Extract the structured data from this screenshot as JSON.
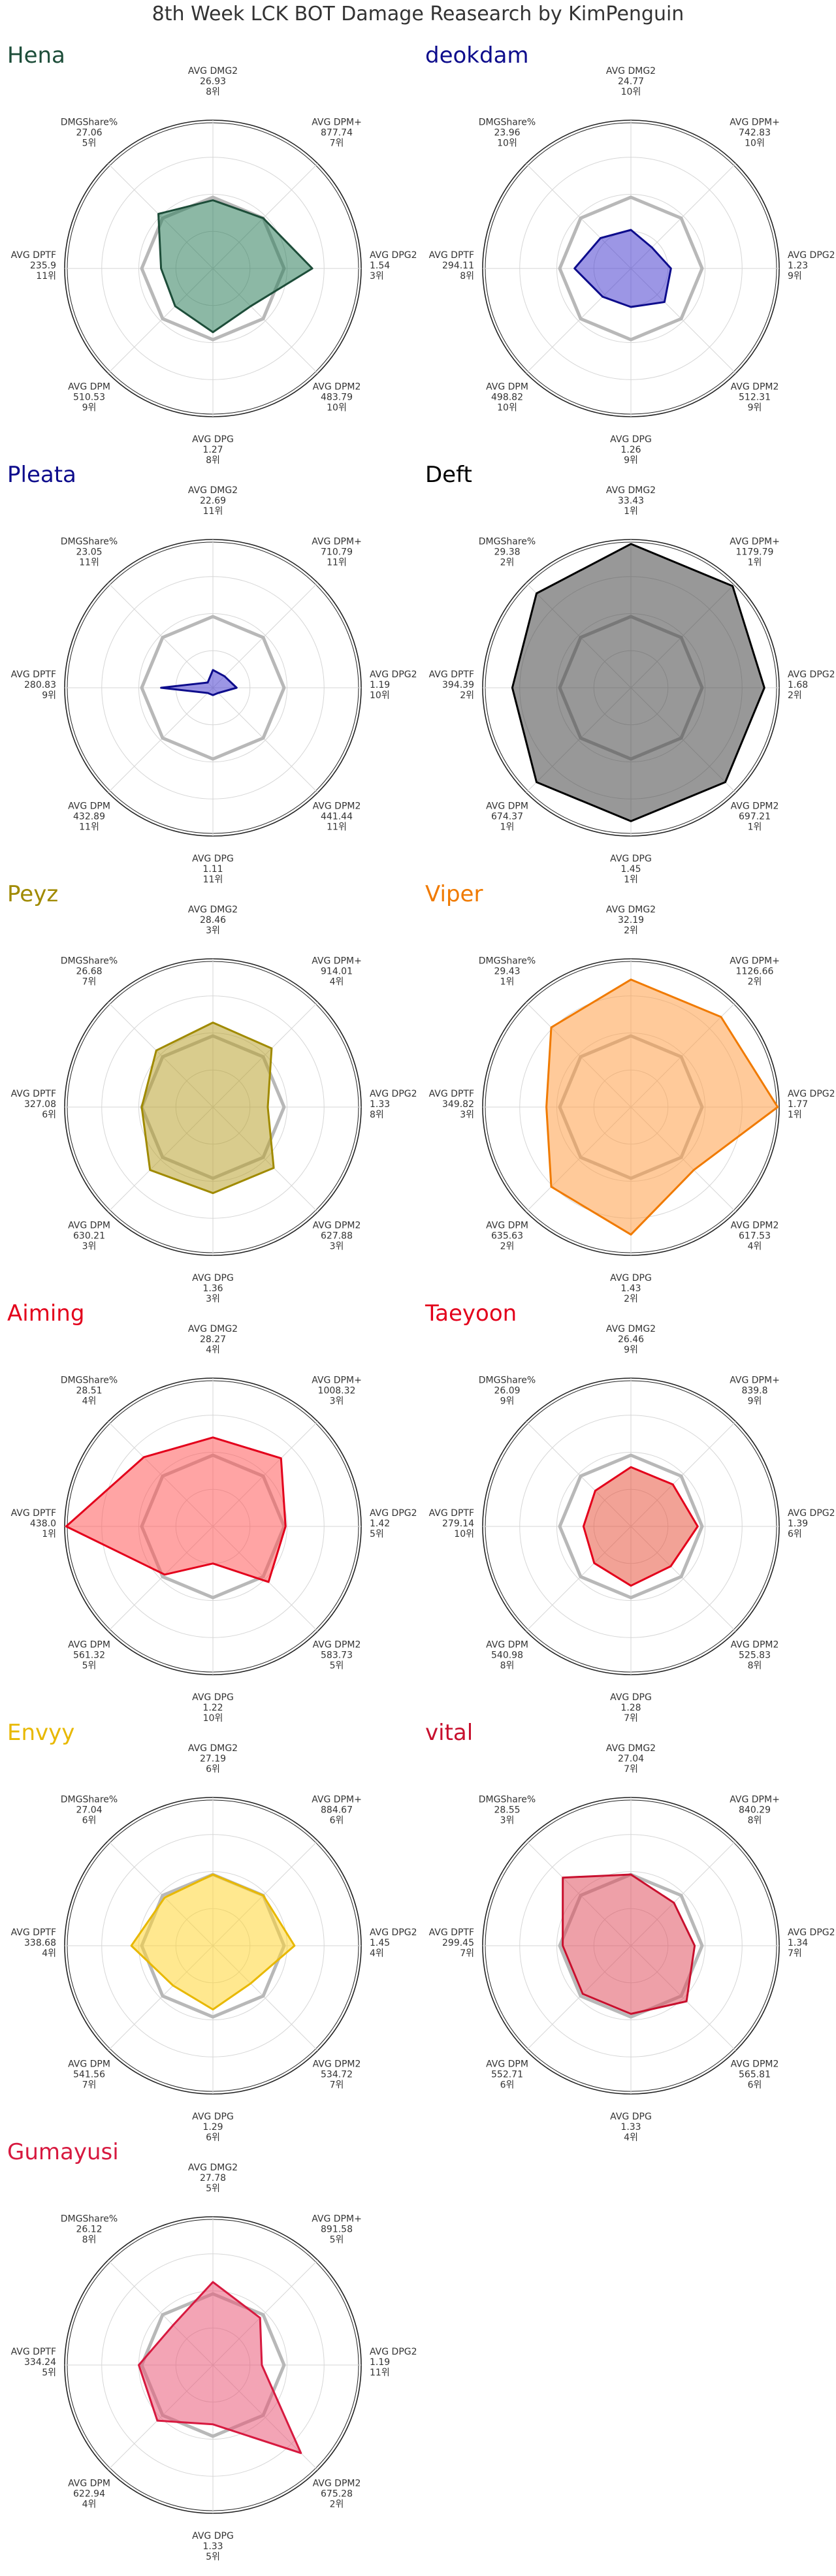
{
  "title": "8th Week LCK BOT Damage Reasearch by KimPenguin",
  "chart_data": [
    {
      "type": "radar",
      "player": "Hena",
      "color": "#1d4d39",
      "fill": "#2e7d5b",
      "axes": [
        {
          "label": "AVG DMG2",
          "value": "26.93",
          "rank": "8위"
        },
        {
          "label": "AVG DPM+",
          "value": "877.74",
          "rank": "7위"
        },
        {
          "label": "AVG DPG2",
          "value": "1.54",
          "rank": "3위"
        },
        {
          "label": "AVG DPM2",
          "value": "483.79",
          "rank": "10위"
        },
        {
          "label": "AVG DPG",
          "value": "1.27",
          "rank": "8위"
        },
        {
          "label": "AVG DPM",
          "value": "510.53",
          "rank": "9위"
        },
        {
          "label": "AVG DPTF",
          "value": "235.9",
          "rank": "11위"
        },
        {
          "label": "DMGShare%",
          "value": "27.06",
          "rank": "5위"
        }
      ],
      "scaled": [
        0.46,
        0.48,
        0.67,
        0.36,
        0.43,
        0.36,
        0.35,
        0.52
      ]
    },
    {
      "type": "radar",
      "player": "deokdam",
      "color": "#0d0c8c",
      "fill": "#4b3fd0",
      "axes": [
        {
          "label": "AVG DMG2",
          "value": "24.77",
          "rank": "10위"
        },
        {
          "label": "AVG DPM+",
          "value": "742.83",
          "rank": "10위"
        },
        {
          "label": "AVG DPG2",
          "value": "1.23",
          "rank": "9위"
        },
        {
          "label": "AVG DPM2",
          "value": "512.31",
          "rank": "9위"
        },
        {
          "label": "AVG DPG",
          "value": "1.26",
          "rank": "9위"
        },
        {
          "label": "AVG DPM",
          "value": "498.82",
          "rank": "10위"
        },
        {
          "label": "AVG DPTF",
          "value": "294.11",
          "rank": "8위"
        },
        {
          "label": "DMGShare%",
          "value": "23.96",
          "rank": "10위"
        }
      ],
      "scaled": [
        0.26,
        0.2,
        0.27,
        0.32,
        0.26,
        0.27,
        0.38,
        0.29
      ]
    },
    {
      "type": "radar",
      "player": "Pleata",
      "color": "#0d0c8c",
      "fill": "#4b3fd0",
      "axes": [
        {
          "label": "AVG DMG2",
          "value": "22.69",
          "rank": "11위"
        },
        {
          "label": "AVG DPM+",
          "value": "710.79",
          "rank": "11위"
        },
        {
          "label": "AVG DPG2",
          "value": "1.19",
          "rank": "10위"
        },
        {
          "label": "AVG DPM2",
          "value": "441.44",
          "rank": "11위"
        },
        {
          "label": "AVG DPG",
          "value": "1.11",
          "rank": "11위"
        },
        {
          "label": "AVG DPM",
          "value": "432.89",
          "rank": "11위"
        },
        {
          "label": "AVG DPTF",
          "value": "280.83",
          "rank": "9위"
        },
        {
          "label": "DMGShare%",
          "value": "23.05",
          "rank": "11위"
        }
      ],
      "scaled": [
        0.12,
        0.11,
        0.16,
        0.05,
        0.05,
        0.05,
        0.35,
        0.05
      ]
    },
    {
      "type": "radar",
      "player": "Deft",
      "color": "#000000",
      "fill": "#444444",
      "axes": [
        {
          "label": "AVG DMG2",
          "value": "33.43",
          "rank": "1위"
        },
        {
          "label": "AVG DPM+",
          "value": "1179.79",
          "rank": "1위"
        },
        {
          "label": "AVG DPG2",
          "value": "1.68",
          "rank": "2위"
        },
        {
          "label": "AVG DPM2",
          "value": "697.21",
          "rank": "1위"
        },
        {
          "label": "AVG DPG",
          "value": "1.45",
          "rank": "1위"
        },
        {
          "label": "AVG DPM",
          "value": "674.37",
          "rank": "1위"
        },
        {
          "label": "AVG DPTF",
          "value": "394.39",
          "rank": "2위"
        },
        {
          "label": "DMGShare%",
          "value": "29.38",
          "rank": "2위"
        }
      ],
      "scaled": [
        0.97,
        0.97,
        0.9,
        0.9,
        0.9,
        0.9,
        0.8,
        0.9
      ]
    },
    {
      "type": "radar",
      "player": "Peyz",
      "color": "#a08a00",
      "fill": "#b9a230",
      "axes": [
        {
          "label": "AVG DMG2",
          "value": "28.46",
          "rank": "3위"
        },
        {
          "label": "AVG DPM+",
          "value": "914.01",
          "rank": "4위"
        },
        {
          "label": "AVG DPG2",
          "value": "1.33",
          "rank": "8위"
        },
        {
          "label": "AVG DPM2",
          "value": "627.88",
          "rank": "3위"
        },
        {
          "label": "AVG DPG",
          "value": "1.36",
          "rank": "3위"
        },
        {
          "label": "AVG DPM",
          "value": "630.21",
          "rank": "3위"
        },
        {
          "label": "AVG DPTF",
          "value": "327.08",
          "rank": "6위"
        },
        {
          "label": "DMGShare%",
          "value": "26.68",
          "rank": "7위"
        }
      ],
      "scaled": [
        0.57,
        0.56,
        0.37,
        0.58,
        0.58,
        0.6,
        0.48,
        0.54
      ]
    },
    {
      "type": "radar",
      "player": "Viper",
      "color": "#f07a00",
      "fill": "#ff9e47",
      "axes": [
        {
          "label": "AVG DMG2",
          "value": "32.19",
          "rank": "2위"
        },
        {
          "label": "AVG DPM+",
          "value": "1126.66",
          "rank": "2위"
        },
        {
          "label": "AVG DPG2",
          "value": "1.77",
          "rank": "1위"
        },
        {
          "label": "AVG DPM2",
          "value": "617.53",
          "rank": "4위"
        },
        {
          "label": "AVG DPG",
          "value": "1.43",
          "rank": "2위"
        },
        {
          "label": "AVG DPM",
          "value": "635.63",
          "rank": "2위"
        },
        {
          "label": "AVG DPTF",
          "value": "349.82",
          "rank": "3위"
        },
        {
          "label": "DMGShare%",
          "value": "29.43",
          "rank": "1위"
        }
      ],
      "scaled": [
        0.86,
        0.86,
        0.99,
        0.6,
        0.86,
        0.76,
        0.57,
        0.76
      ]
    },
    {
      "type": "radar",
      "player": "Aiming",
      "color": "#e3001b",
      "fill": "#ff5a5a",
      "axes": [
        {
          "label": "AVG DMG2",
          "value": "28.27",
          "rank": "4위"
        },
        {
          "label": "AVG DPM+",
          "value": "1008.32",
          "rank": "3위"
        },
        {
          "label": "AVG DPG2",
          "value": "1.42",
          "rank": "5위"
        },
        {
          "label": "AVG DPM2",
          "value": "583.73",
          "rank": "5위"
        },
        {
          "label": "AVG DPG",
          "value": "1.22",
          "rank": "10위"
        },
        {
          "label": "AVG DPM",
          "value": "561.32",
          "rank": "5위"
        },
        {
          "label": "AVG DPTF",
          "value": "438.0",
          "rank": "1위"
        },
        {
          "label": "DMGShare%",
          "value": "28.51",
          "rank": "4위"
        }
      ],
      "scaled": [
        0.6,
        0.65,
        0.49,
        0.53,
        0.25,
        0.46,
        0.99,
        0.66
      ]
    },
    {
      "type": "radar",
      "player": "Taeyoon",
      "color": "#e3001b",
      "fill": "#e8553f",
      "axes": [
        {
          "label": "AVG DMG2",
          "value": "26.46",
          "rank": "9위"
        },
        {
          "label": "AVG DPM+",
          "value": "839.8",
          "rank": "9위"
        },
        {
          "label": "AVG DPG2",
          "value": "1.39",
          "rank": "6위"
        },
        {
          "label": "AVG DPM2",
          "value": "525.83",
          "rank": "8위"
        },
        {
          "label": "AVG DPG",
          "value": "1.28",
          "rank": "7위"
        },
        {
          "label": "AVG DPM",
          "value": "540.98",
          "rank": "8위"
        },
        {
          "label": "AVG DPTF",
          "value": "279.14",
          "rank": "10위"
        },
        {
          "label": "DMGShare%",
          "value": "26.09",
          "rank": "9위"
        }
      ],
      "scaled": [
        0.4,
        0.4,
        0.45,
        0.38,
        0.4,
        0.35,
        0.32,
        0.34
      ]
    },
    {
      "type": "radar",
      "player": "Envyy",
      "color": "#e8b800",
      "fill": "#ffd633",
      "axes": [
        {
          "label": "AVG DMG2",
          "value": "27.19",
          "rank": "6위"
        },
        {
          "label": "AVG DPM+",
          "value": "884.67",
          "rank": "6위"
        },
        {
          "label": "AVG DPG2",
          "value": "1.45",
          "rank": "4위"
        },
        {
          "label": "AVG DPM2",
          "value": "534.72",
          "rank": "7위"
        },
        {
          "label": "AVG DPG",
          "value": "1.29",
          "rank": "6위"
        },
        {
          "label": "AVG DPM",
          "value": "541.56",
          "rank": "7위"
        },
        {
          "label": "AVG DPTF",
          "value": "338.68",
          "rank": "4위"
        },
        {
          "label": "DMGShare%",
          "value": "27.04",
          "rank": "6위"
        }
      ],
      "scaled": [
        0.48,
        0.48,
        0.55,
        0.36,
        0.43,
        0.38,
        0.55,
        0.46
      ]
    },
    {
      "type": "radar",
      "player": "vital",
      "color": "#c8102e",
      "fill": "#e05260",
      "axes": [
        {
          "label": "AVG DMG2",
          "value": "27.04",
          "rank": "7위"
        },
        {
          "label": "AVG DPM+",
          "value": "840.29",
          "rank": "8위"
        },
        {
          "label": "AVG DPG2",
          "value": "1.34",
          "rank": "7위"
        },
        {
          "label": "AVG DPM2",
          "value": "565.81",
          "rank": "6위"
        },
        {
          "label": "AVG DPG",
          "value": "1.33",
          "rank": "4위"
        },
        {
          "label": "AVG DPM",
          "value": "552.71",
          "rank": "6위"
        },
        {
          "label": "AVG DPTF",
          "value": "299.45",
          "rank": "7위"
        },
        {
          "label": "DMGShare%",
          "value": "28.55",
          "rank": "3위"
        }
      ],
      "scaled": [
        0.48,
        0.41,
        0.43,
        0.53,
        0.46,
        0.46,
        0.46,
        0.65
      ]
    },
    {
      "type": "radar",
      "player": "Gumayusi",
      "color": "#d7193f",
      "fill": "#ea5a78",
      "axes": [
        {
          "label": "AVG DMG2",
          "value": "27.78",
          "rank": "5위"
        },
        {
          "label": "AVG DPM+",
          "value": "891.58",
          "rank": "5위"
        },
        {
          "label": "AVG DPG2",
          "value": "1.19",
          "rank": "11위"
        },
        {
          "label": "AVG DPM2",
          "value": "675.28",
          "rank": "2위"
        },
        {
          "label": "AVG DPG",
          "value": "1.33",
          "rank": "5위"
        },
        {
          "label": "AVG DPM",
          "value": "622.94",
          "rank": "4위"
        },
        {
          "label": "AVG DPTF",
          "value": "334.24",
          "rank": "5위"
        },
        {
          "label": "DMGShare%",
          "value": "26.12",
          "rank": "8위"
        }
      ],
      "scaled": [
        0.56,
        0.45,
        0.33,
        0.84,
        0.4,
        0.53,
        0.5,
        0.38
      ]
    }
  ]
}
